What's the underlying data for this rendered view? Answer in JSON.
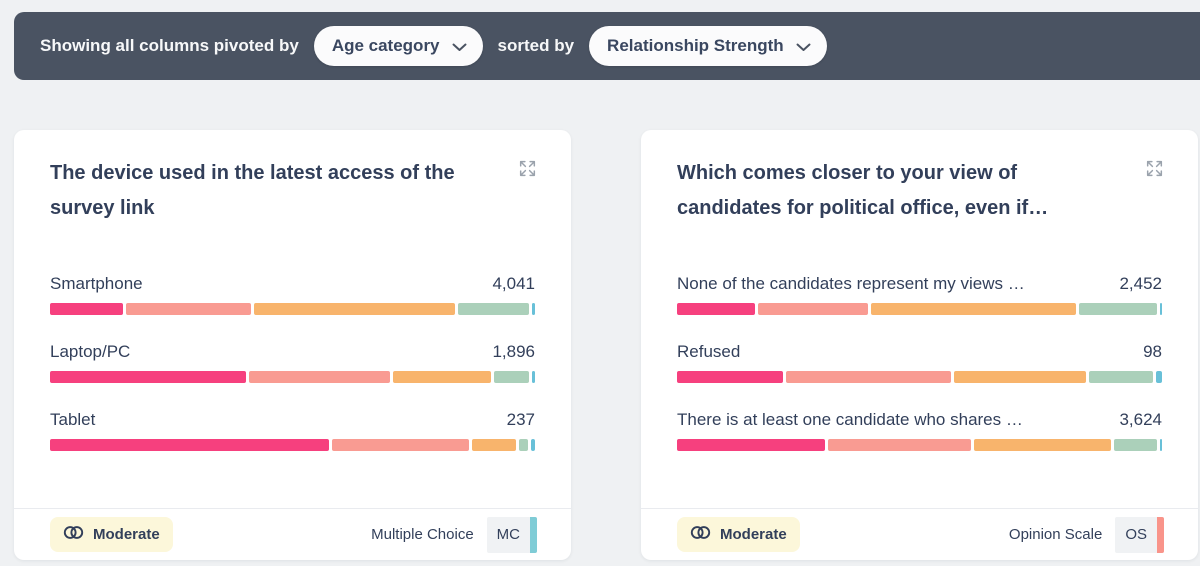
{
  "toolbar": {
    "prefix_label": "Showing all columns pivoted by",
    "pivot_value": "Age category",
    "middle_label": "sorted by",
    "sort_value": "Relationship Strength"
  },
  "colors": {
    "segments": [
      "#f6407e",
      "#f99b92",
      "#f8b46c",
      "#abd0ba",
      "#68c0d8"
    ],
    "mc_tag": "#7fccd6",
    "os_tag": "#f9948a"
  },
  "cards": [
    {
      "title": "The device used in the latest access of the survey link",
      "rows": [
        {
          "label": "Smartphone",
          "value": "4,041",
          "segments": [
            15.2,
            25.8,
            41.6,
            14.7,
            0.7
          ]
        },
        {
          "label": "Laptop/PC",
          "value": "1,896",
          "segments": [
            40.4,
            29.1,
            20.1,
            7.2,
            0.7
          ]
        },
        {
          "label": "Tablet",
          "value": "237",
          "segments": [
            57.6,
            28.3,
            9.0,
            1.9,
            0.8
          ]
        }
      ],
      "footer": {
        "strength_label": "Moderate",
        "type_label": "Multiple Choice",
        "type_abbr": "MC"
      }
    },
    {
      "title": "Which comes closer to your view of candidates for political office, even if…",
      "rows": [
        {
          "label": "None of the candidates represent my views …",
          "value": "2,452",
          "segments": [
            16.0,
            22.6,
            42.1,
            16.0,
            0.5
          ]
        },
        {
          "label": "Refused",
          "value": "98",
          "segments": [
            21.8,
            34.0,
            27.0,
            13.2,
            1.3
          ]
        },
        {
          "label": "There is at least one candidate who shares …",
          "value": "3,624",
          "segments": [
            30.6,
            29.6,
            28.3,
            8.8,
            0.5
          ]
        }
      ],
      "footer": {
        "strength_label": "Moderate",
        "type_label": "Opinion Scale",
        "type_abbr": "OS"
      }
    }
  ]
}
